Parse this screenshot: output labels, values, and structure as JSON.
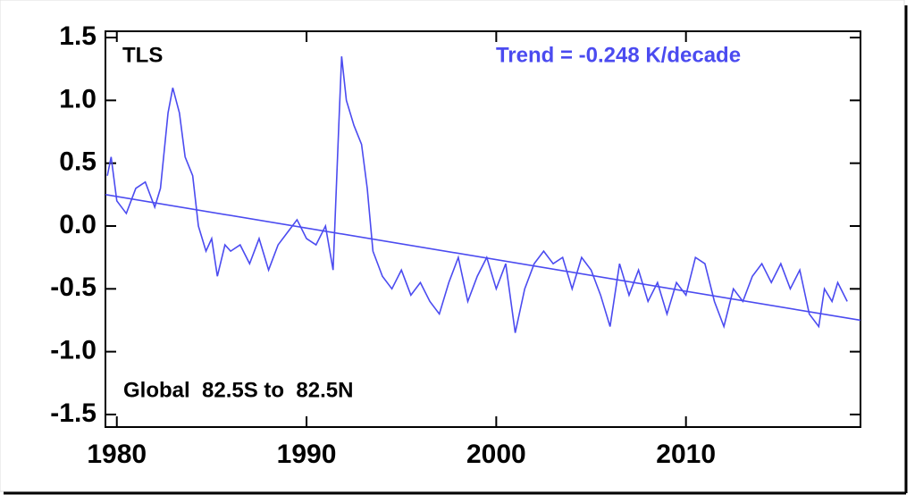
{
  "chart_data": {
    "type": "line",
    "label_top_left": "TLS",
    "annotation": "Trend = -0.248 K/decade",
    "label_bottom_left": "Global  82.5S to  82.5N",
    "xlim": [
      1979.4,
      2019.2
    ],
    "ylim": [
      -1.6,
      1.55
    ],
    "xticks": [
      1980,
      1990,
      2000,
      2010
    ],
    "yticks": [
      {
        "value": 1.5,
        "label": "1.5"
      },
      {
        "value": 1,
        "label": "1.0"
      },
      {
        "value": 0.5,
        "label": "0.5"
      },
      {
        "value": 0,
        "label": "0.0"
      },
      {
        "value": -0.5,
        "label": "-0.5"
      },
      {
        "value": -1,
        "label": "-1.0"
      },
      {
        "value": -1.5,
        "label": "-1.5"
      }
    ],
    "series": [
      {
        "color": "#4b4bf0",
        "x": [
          1979.5,
          1979.7,
          1980.0,
          1980.5,
          1981.0,
          1981.5,
          1982.0,
          1982.3,
          1982.7,
          1982.95,
          1983.3,
          1983.6,
          1984.0,
          1984.3,
          1984.7,
          1985.0,
          1985.3,
          1985.7,
          1986.0,
          1986.5,
          1987.0,
          1987.5,
          1988.0,
          1988.5,
          1989.0,
          1989.5,
          1990.0,
          1990.5,
          1991.0,
          1991.4,
          1991.7,
          1991.85,
          1992.1,
          1992.5,
          1992.9,
          1993.2,
          1993.5,
          1994.0,
          1994.5,
          1995.0,
          1995.5,
          1996.0,
          1996.5,
          1997.0,
          1997.5,
          1998.0,
          1998.5,
          1999.0,
          1999.5,
          2000.0,
          2000.5,
          2001.0,
          2001.5,
          2002.0,
          2002.5,
          2003.0,
          2003.5,
          2004.0,
          2004.5,
          2005.0,
          2005.5,
          2006.0,
          2006.5,
          2007.0,
          2007.5,
          2008.0,
          2008.5,
          2009.0,
          2009.5,
          2010.0,
          2010.5,
          2011.0,
          2011.5,
          2012.0,
          2012.5,
          2013.0,
          2013.5,
          2014.0,
          2014.5,
          2015.0,
          2015.5,
          2016.0,
          2016.5,
          2017.0,
          2017.3,
          2017.7,
          2018.0,
          2018.5
        ],
        "values": [
          0.4,
          0.55,
          0.2,
          0.1,
          0.3,
          0.35,
          0.15,
          0.3,
          0.9,
          1.1,
          0.9,
          0.55,
          0.4,
          0.0,
          -0.2,
          -0.1,
          -0.4,
          -0.15,
          -0.2,
          -0.15,
          -0.3,
          -0.1,
          -0.35,
          -0.15,
          -0.05,
          0.05,
          -0.1,
          -0.15,
          0.0,
          -0.35,
          0.8,
          1.35,
          1.0,
          0.8,
          0.65,
          0.3,
          -0.2,
          -0.4,
          -0.5,
          -0.35,
          -0.55,
          -0.45,
          -0.6,
          -0.7,
          -0.45,
          -0.25,
          -0.6,
          -0.4,
          -0.25,
          -0.5,
          -0.3,
          -0.85,
          -0.5,
          -0.3,
          -0.2,
          -0.3,
          -0.25,
          -0.5,
          -0.25,
          -0.35,
          -0.55,
          -0.8,
          -0.3,
          -0.55,
          -0.35,
          -0.6,
          -0.45,
          -0.7,
          -0.45,
          -0.55,
          -0.25,
          -0.3,
          -0.6,
          -0.8,
          -0.5,
          -0.6,
          -0.4,
          -0.3,
          -0.45,
          -0.3,
          -0.5,
          -0.35,
          -0.7,
          -0.8,
          -0.5,
          -0.6,
          -0.45,
          -0.6
        ]
      },
      {
        "color": "#4b4bf0",
        "x": [
          1979.4,
          2019.2
        ],
        "values": [
          0.25,
          -0.75
        ]
      }
    ]
  }
}
